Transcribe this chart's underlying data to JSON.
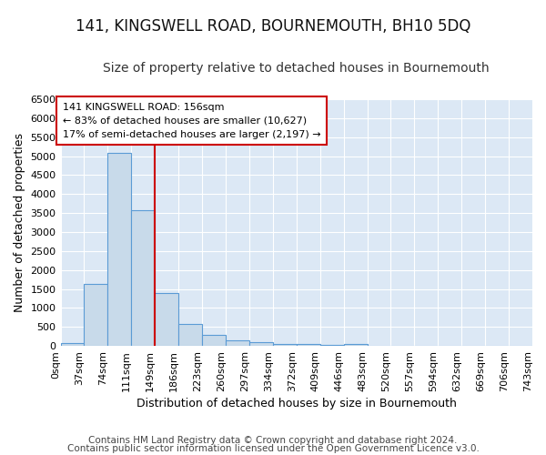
{
  "title": "141, KINGSWELL ROAD, BOURNEMOUTH, BH10 5DQ",
  "subtitle": "Size of property relative to detached houses in Bournemouth",
  "xlabel": "Distribution of detached houses by size in Bournemouth",
  "ylabel": "Number of detached properties",
  "bin_labels": [
    "0sqm",
    "37sqm",
    "74sqm",
    "111sqm",
    "149sqm",
    "186sqm",
    "223sqm",
    "260sqm",
    "297sqm",
    "334sqm",
    "372sqm",
    "409sqm",
    "446sqm",
    "483sqm",
    "520sqm",
    "557sqm",
    "594sqm",
    "632sqm",
    "669sqm",
    "706sqm",
    "743sqm"
  ],
  "bar_heights": [
    75,
    1625,
    5075,
    3575,
    1400,
    575,
    290,
    150,
    90,
    55,
    40,
    35,
    55,
    0,
    0,
    0,
    0,
    0,
    0,
    0
  ],
  "bar_color": "#c8daea",
  "bar_edge_color": "#5b9bd5",
  "bar_width": 1.0,
  "red_line_x": 4.0,
  "ylim": [
    0,
    6500
  ],
  "yticks": [
    0,
    500,
    1000,
    1500,
    2000,
    2500,
    3000,
    3500,
    4000,
    4500,
    5000,
    5500,
    6000,
    6500
  ],
  "annotation_title": "141 KINGSWELL ROAD: 156sqm",
  "annotation_line1": "← 83% of detached houses are smaller (10,627)",
  "annotation_line2": "17% of semi-detached houses are larger (2,197) →",
  "annotation_box_color": "#ffffff",
  "annotation_box_edge": "#cc0000",
  "footer1": "Contains HM Land Registry data © Crown copyright and database right 2024.",
  "footer2": "Contains public sector information licensed under the Open Government Licence v3.0.",
  "fig_background_color": "#ffffff",
  "plot_bg_color": "#dce8f5",
  "grid_color": "#ffffff",
  "title_fontsize": 12,
  "subtitle_fontsize": 10,
  "axis_label_fontsize": 9,
  "tick_fontsize": 8,
  "footer_fontsize": 7.5
}
